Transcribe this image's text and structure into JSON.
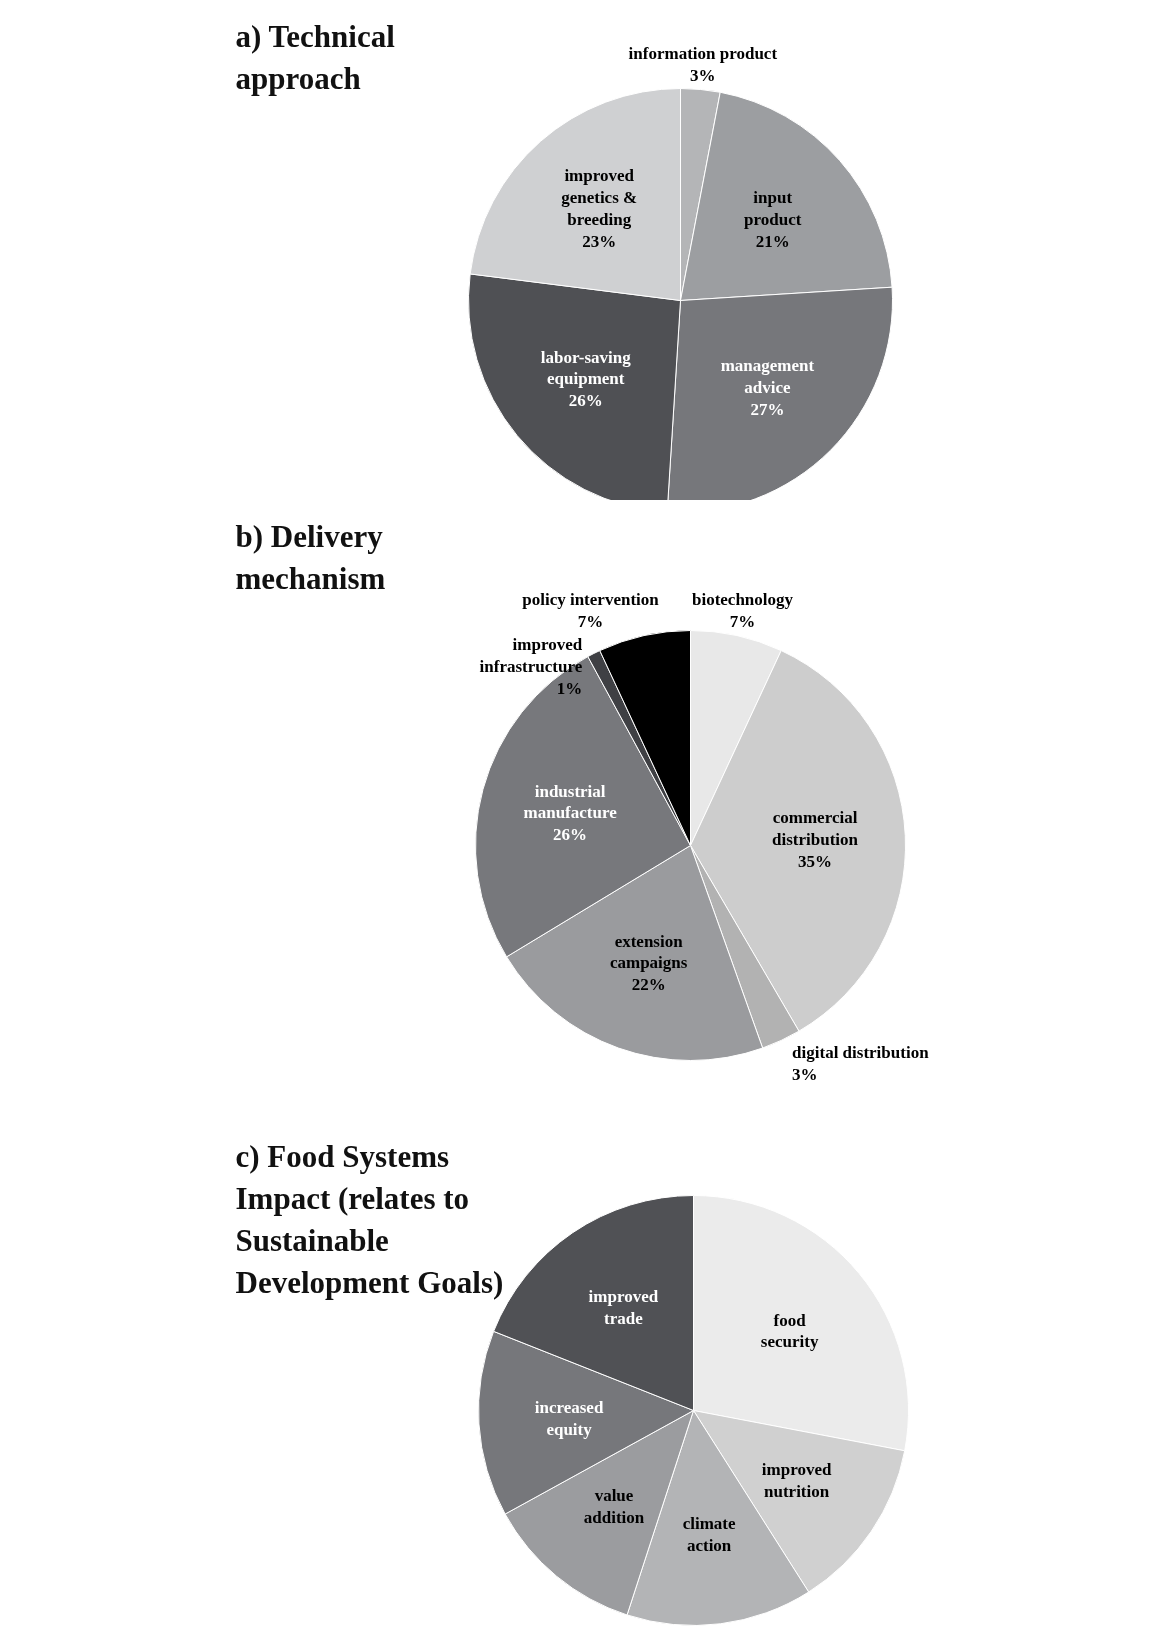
{
  "chart_data": [
    {
      "type": "pie",
      "title": "a) Technical approach",
      "categories": [
        "information product",
        "input product",
        "management advice",
        "labor-saving equipment",
        "improved genetics & breeding"
      ],
      "values": [
        3,
        21,
        27,
        26,
        23
      ],
      "colors": [
        "#b4b5b7",
        "#9c9ea1",
        "#76777b",
        "#4f5054",
        "#cfd0d2"
      ],
      "value_labels": [
        "3%",
        "21%",
        "27%",
        "26%",
        "23%"
      ]
    },
    {
      "type": "pie",
      "title": "b) Delivery mechanism",
      "categories": [
        "biotechnology",
        "commercial distribution",
        "digital distribution",
        "extension campaigns",
        "industrial manufacture",
        "improved infrastructure",
        "policy intervention"
      ],
      "values": [
        7,
        35,
        3,
        22,
        26,
        1,
        7
      ],
      "colors": [
        "#e8e8e8",
        "#cdcdcd",
        "#b2b2b2",
        "#9a9b9e",
        "#77787c",
        "#3f4044",
        "#000000"
      ],
      "value_labels": [
        "7%",
        "35%",
        "3%",
        "22%",
        "26%",
        "1%",
        "7%"
      ]
    },
    {
      "type": "pie",
      "title": "c) Food Systems Impact (relates to Sustainable Development Goals)",
      "categories": [
        "food security",
        "improved nutrition",
        "climate action",
        "value addition",
        "increased equity",
        "improved trade"
      ],
      "values": [
        28,
        13,
        14,
        12,
        14,
        19
      ],
      "colors": [
        "#ebebeb",
        "#d0d0d0",
        "#b3b4b6",
        "#9b9c9f",
        "#76777b",
        "#505155"
      ]
    }
  ]
}
